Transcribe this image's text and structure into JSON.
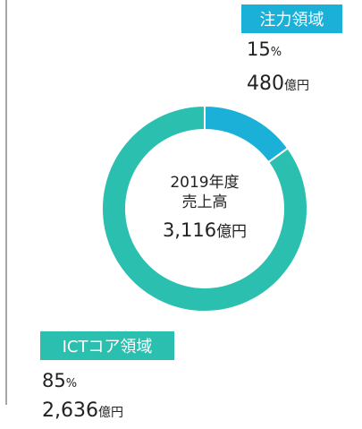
{
  "chart_data": {
    "type": "donut",
    "categories": [
      "注力領域",
      "ICTコア領域"
    ],
    "values": [
      15,
      85
    ],
    "value_unit": "%",
    "amounts": [
      480,
      2636
    ],
    "amount_labels": [
      "480",
      "2,636"
    ],
    "amount_unit": "億円",
    "colors": [
      "#1ab0d8",
      "#2bbfb0"
    ],
    "center": {
      "year": "2019年度",
      "label": "売上高",
      "total": "3,116",
      "unit": "億円"
    }
  }
}
